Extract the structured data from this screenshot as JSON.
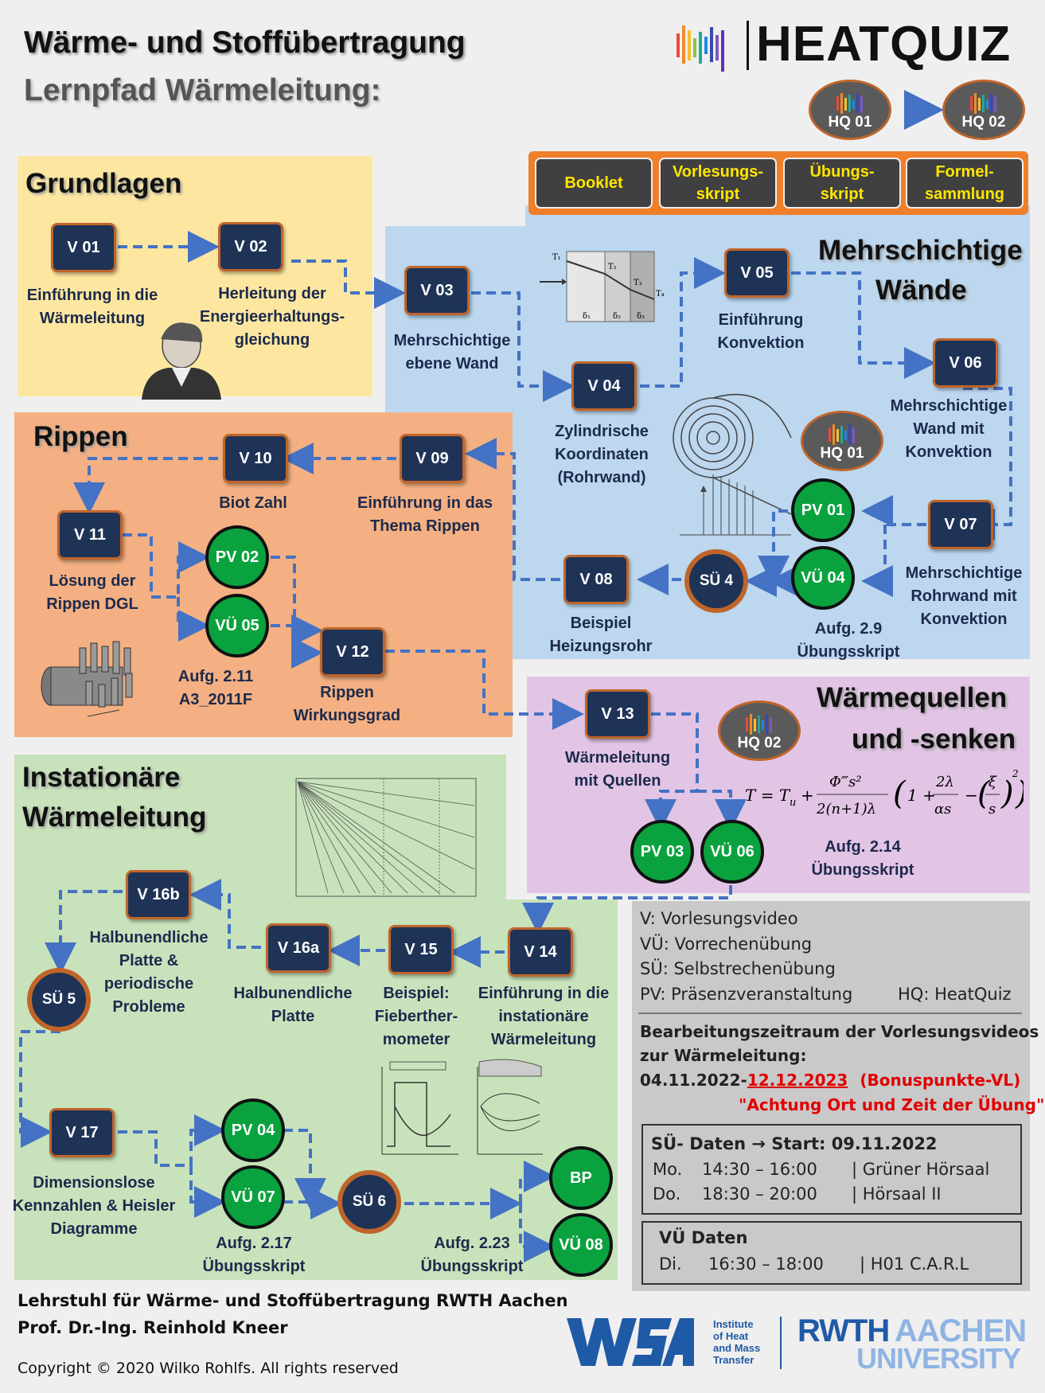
{
  "header": {
    "title_line1": "Wärme- und Stoffübertragung",
    "title_line2": "Lernpfad Wärmeleitung:",
    "logo_text": "HEATQUIZ"
  },
  "hq_badges": {
    "hq01": "HQ  01",
    "hq02": "HQ  02"
  },
  "buttons": {
    "booklet": "Booklet",
    "vorlesungsskript": "Vorlesungs-\nskript",
    "uebungsskript": "Übungs-\nskript",
    "formelsammlung": "Formel-\nsammlung"
  },
  "sections": {
    "grundlagen": "Grundlagen",
    "mehrschichtige_1": "Mehrschichtige",
    "mehrschichtige_2": "Wände",
    "rippen": "Rippen",
    "quellen_1": "Wärmequellen",
    "quellen_2": "und -senken",
    "inst_1": "Instationäre",
    "inst_2": "Wärmeleitung"
  },
  "nodes": {
    "v01": "V 01",
    "v02": "V 02",
    "v03": "V 03",
    "v04": "V 04",
    "v05": "V 05",
    "v06": "V 06",
    "v07": "V 07",
    "v08": "V 08",
    "v09": "V 09",
    "v10": "V 10",
    "v11": "V 11",
    "v12": "V 12",
    "v13": "V 13",
    "v14": "V 14",
    "v15": "V 15",
    "v16a": "V 16a",
    "v16b": "V 16b",
    "v17": "V 17",
    "pv01": "PV 01",
    "vu04": "VÜ 04",
    "pv02": "PV 02",
    "vu05": "VÜ 05",
    "pv03": "PV 03",
    "vu06": "VÜ 06",
    "pv04": "PV 04",
    "vu07": "VÜ 07",
    "bp": "BP",
    "vu08": "VÜ 08",
    "su4": "SÜ 4",
    "su5": "SÜ 5",
    "su6": "SÜ 6"
  },
  "captions": {
    "v01": "Einführung in die\nWärmeleitung",
    "v02": "Herleitung der\nEnergieerhaltungs-\ngleichung",
    "v03": "Mehrschichtige\nebene Wand",
    "v04": "Zylindrische\nKoordinaten\n(Rohrwand)",
    "v05": "Einführung\nKonvektion",
    "v06": "Mehrschichtige\nWand mit\nKonvektion",
    "v07": "Mehrschichtige\nRohrwand mit\nKonvektion",
    "v08": "Beispiel\nHeizungsrohr",
    "vu04": "Aufg. 2.9\nÜbungsskript",
    "v09": "Einführung in das\nThema Rippen",
    "v10": "Biot Zahl",
    "v11": "Lösung der\nRippen DGL",
    "vu05": "Aufg. 2.11\nA3_2011F",
    "v12": "Rippen\nWirkungsgrad",
    "v13": "Wärmeleitung\nmit Quellen",
    "vu06": "Aufg. 2.14\nÜbungsskript",
    "v14": "Einführung in die\ninstationäre\nWärmeleitung",
    "v15": "Beispiel:\nFieberther-\nmometer",
    "v16a": "Halbunendliche\nPlatte",
    "v16b": "Halbunendliche\nPlatte &\nperiodische\nProbleme",
    "v17": "Dimensionslose\nKennzahlen & Heisler\nDiagramme",
    "vu07": "Aufg. 2.17\nÜbungsskript",
    "vu08": "Aufg. 2.23\nÜbungsskript"
  },
  "legend": {
    "l1": "V:    Vorlesungsvideo",
    "l2": "VÜ: Vorrechenübung",
    "l3": "SÜ:  Selbstrechenübung",
    "l4": "PV:  Präsenzveranstaltung",
    "l4b": "HQ:  HeatQuiz",
    "period_1": "Bearbeitungszeitraum der Vorlesungsvideos",
    "period_2": "zur Wärmeleitung:",
    "date_start": "04.11.2022-",
    "date_end": "12.12.2023",
    "bonus": "(Bonuspunkte-VL)",
    "warning": "\"Achtung Ort und Zeit der Übung\""
  },
  "su_dates": {
    "title": "SÜ- Daten → Start: 09.11.2022",
    "row1": {
      "day": "Mo.",
      "time": "14:30 – 16:00",
      "room": "| Grüner Hörsaal"
    },
    "row2": {
      "day": "Do.",
      "time": "18:30 – 20:00",
      "room": "| Hörsaal II"
    }
  },
  "vu_dates": {
    "title": "VÜ Daten",
    "row1": {
      "day": "Di.",
      "time": "16:30 – 18:00",
      "room": "| H01 C.A.R.L"
    }
  },
  "footer": {
    "line1": "Lehrstuhl für Wärme- und Stoffübertragung RWTH Aachen",
    "line2": "Prof. Dr.-Ing. Reinhold Kneer",
    "copyright": "Copyright © 2020 Wilko Rohlfs. All rights reserved",
    "wsa_text": "Institute\nof Heat\nand Mass\nTransfer",
    "rwth_1": "RWTH",
    "rwth_2": "AACHEN",
    "rwth_3": "UNIVERSITY"
  },
  "colors": {
    "node_fill": "#1e3356",
    "node_border": "#c0652a",
    "circle_green": "#0aa23e",
    "arrow_blue": "#4472c4",
    "accent_orange": "#f07f2a",
    "button_text": "#ffe600",
    "warning_red": "#e00000"
  }
}
